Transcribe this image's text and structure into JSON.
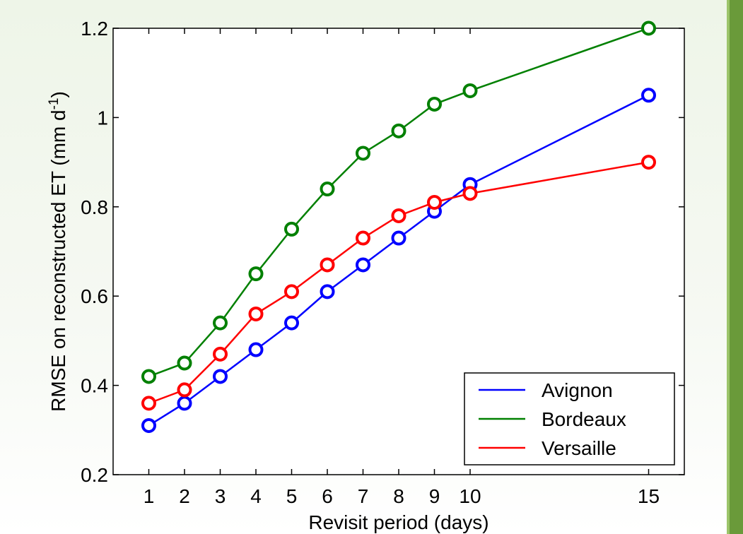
{
  "chart_data": {
    "type": "line",
    "x": [
      1,
      2,
      3,
      4,
      5,
      6,
      7,
      8,
      9,
      10,
      15
    ],
    "xticks": [
      "1",
      "2",
      "3",
      "4",
      "5",
      "6",
      "7",
      "8",
      "9",
      "10",
      "15"
    ],
    "yticks": [
      "0.2",
      "0.4",
      "0.6",
      "0.8",
      "1",
      "1.2"
    ],
    "xlim": [
      0,
      16
    ],
    "ylim": [
      0.2,
      1.2
    ],
    "xlabel": "Revisit period (days)",
    "ylabel": "RMSE on reconstructed ET  (mm d",
    "ylabel_sup": "-1",
    "ylabel_close": ")",
    "grid": false,
    "legend_position": "bottom-right",
    "series": [
      {
        "name": "Avignon",
        "color": "#0000ff",
        "values": [
          0.31,
          0.36,
          0.42,
          0.48,
          0.54,
          0.61,
          0.67,
          0.73,
          0.79,
          0.85,
          1.05
        ]
      },
      {
        "name": "Bordeaux",
        "color": "#008000",
        "values": [
          0.42,
          0.45,
          0.54,
          0.65,
          0.75,
          0.84,
          0.92,
          0.97,
          1.03,
          1.06,
          1.2
        ]
      },
      {
        "name": "Versaille",
        "color": "#ff0000",
        "values": [
          0.36,
          0.39,
          0.47,
          0.56,
          0.61,
          0.67,
          0.73,
          0.78,
          0.81,
          0.83,
          0.9
        ]
      }
    ],
    "frame_accent": "#6a9a3a"
  }
}
